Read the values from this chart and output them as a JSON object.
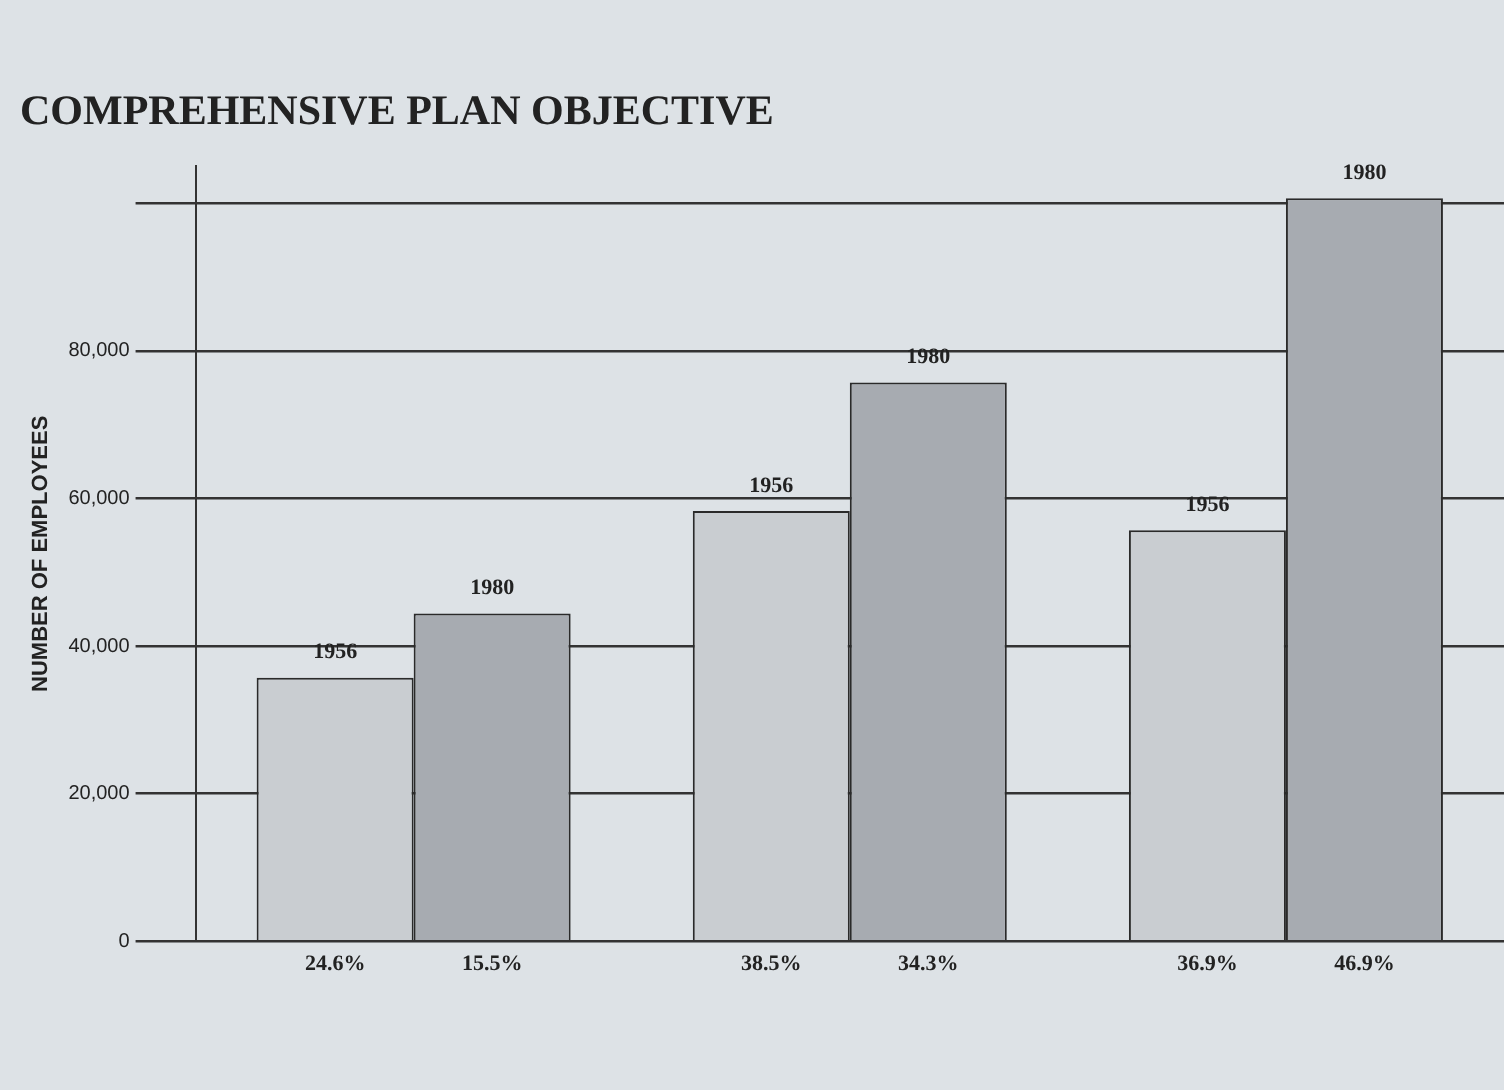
{
  "chart_data": {
    "type": "bar",
    "title": "COMPREHENSIVE PLAN OBJECTIVE",
    "ylabel": "NUMBER OF EMPLOYEES",
    "categories": [
      null,
      null,
      null
    ],
    "series": [
      {
        "name": "1956",
        "color": "#c9cdd1",
        "values": [
          35700,
          58300,
          55700
        ]
      },
      {
        "name": "1980",
        "color": "#a7abb1",
        "values": [
          44400,
          75700,
          100700
        ]
      }
    ],
    "ylim": [
      0,
      105000
    ],
    "yticks": [
      0,
      {
        "value": 20000,
        "label": "20,000"
      },
      {
        "value": 40000,
        "label": "40,000"
      },
      {
        "value": 60000,
        "label": "60,000"
      },
      {
        "value": 80000,
        "label": "80,000"
      },
      {
        "value": 100000,
        "label": null
      }
    ],
    "grid": "y",
    "legend": false,
    "annotations": [
      "24.6%",
      "15.5%",
      "38.5%",
      "34.3%",
      "36.9%",
      "46.9%"
    ]
  }
}
